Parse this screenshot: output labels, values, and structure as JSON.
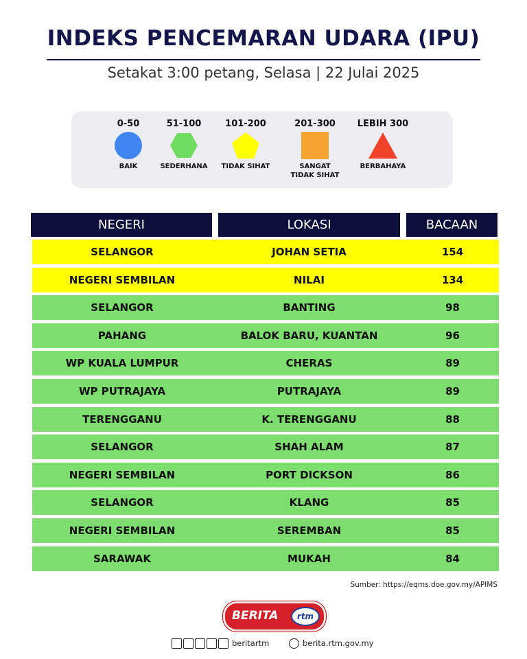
{
  "header": {
    "title": "INDEKS PENCEMARAN UDARA (IPU)",
    "subtitle": "Setakat 3:00 petang, Selasa | 22 Julai 2025"
  },
  "legend": [
    {
      "range": "0-50",
      "label": "BAIK",
      "color": "#3f86f0"
    },
    {
      "range": "51-100",
      "label": "SEDERHANA",
      "color": "#6ddc5f"
    },
    {
      "range": "101-200",
      "label": "TIDAK SIHAT",
      "color": "#ffff00"
    },
    {
      "range": "201-300",
      "label": "SANGAT TIDAK SIHAT",
      "color": "#f7a531"
    },
    {
      "range": "LEBIH 300",
      "label": "BERBAHAYA",
      "color": "#f0422b"
    }
  ],
  "table": {
    "columns": [
      "NEGERI",
      "LOKASI",
      "BACAAN"
    ],
    "rows": [
      {
        "cells": [
          "SELANGOR",
          "JOHAN SETIA",
          154
        ],
        "color": "#ffff00"
      },
      {
        "cells": [
          "NEGERI SEMBILAN",
          "NILAI",
          134
        ],
        "color": "#ffff00"
      },
      {
        "cells": [
          "SELANGOR",
          "BANTING",
          98
        ],
        "color": "#7ddd6e"
      },
      {
        "cells": [
          "PAHANG",
          "BALOK BARU, KUANTAN",
          96
        ],
        "color": "#7ddd6e"
      },
      {
        "cells": [
          "WP KUALA LUMPUR",
          "CHERAS",
          89
        ],
        "color": "#7ddd6e"
      },
      {
        "cells": [
          "WP PUTRAJAYA",
          "PUTRAJAYA",
          89
        ],
        "color": "#7ddd6e"
      },
      {
        "cells": [
          "TERENGGANU",
          "K. TERENGGANU",
          88
        ],
        "color": "#7ddd6e"
      },
      {
        "cells": [
          "SELANGOR",
          "SHAH ALAM",
          87
        ],
        "color": "#7ddd6e"
      },
      {
        "cells": [
          "NEGERI SEMBILAN",
          "PORT DICKSON",
          86
        ],
        "color": "#7ddd6e"
      },
      {
        "cells": [
          "SELANGOR",
          "KLANG",
          85
        ],
        "color": "#7ddd6e"
      },
      {
        "cells": [
          "NEGERI SEMBILAN",
          "SEREMBAN",
          85
        ],
        "color": "#7ddd6e"
      },
      {
        "cells": [
          "SARAWAK",
          "MUKAH",
          84
        ],
        "color": "#7ddd6e"
      }
    ]
  },
  "source": "Sumber: https://eqms.doe.gov.my/APIMS",
  "footer": {
    "brand": "BERITA",
    "brand_badge": "rtm",
    "social": "beritartm",
    "website": "berita.rtm.gov.my"
  }
}
